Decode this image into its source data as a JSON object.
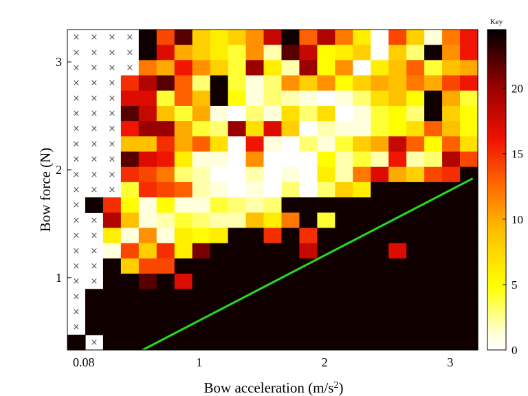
{
  "chart_data": {
    "type": "heatmap",
    "title": "",
    "xlabel": "Bow acceleration (m/s",
    "xlabel_sup": "2",
    "xlabel_close": ")",
    "ylabel": "Bow force (N)",
    "xlim": [
      -0.05,
      3.22
    ],
    "ylim": [
      0.33,
      3.3
    ],
    "x_ticks": [
      {
        "value": 0.08,
        "label": "0.08"
      },
      {
        "value": 1,
        "label": "1"
      },
      {
        "value": 2,
        "label": "2"
      },
      {
        "value": 3,
        "label": "3"
      }
    ],
    "y_ticks": [
      {
        "value": 1,
        "label": "1"
      },
      {
        "value": 2,
        "label": "2"
      },
      {
        "value": 3,
        "label": "3"
      }
    ],
    "colorbar": {
      "title": "Key",
      "min": 0,
      "max": 24.5,
      "ticks": [
        {
          "value": 0,
          "label": "0"
        },
        {
          "value": 5,
          "label": "5"
        },
        {
          "value": 10,
          "label": "10"
        },
        {
          "value": 15,
          "label": "15"
        },
        {
          "value": 20,
          "label": "20"
        }
      ]
    },
    "grid": false,
    "missing_marker": "×",
    "cells_note": "rows listed from top (high force) to bottom (low force); null = no data, marked with ×",
    "rows": [
      [
        null,
        null,
        null,
        null,
        24,
        14,
        22,
        8,
        6,
        8,
        11,
        18,
        24,
        13,
        19,
        12,
        6,
        0,
        14,
        8,
        1,
        12,
        16
      ],
      [
        null,
        null,
        null,
        null,
        24,
        17,
        10,
        8,
        6,
        4,
        11,
        2,
        22,
        18,
        5,
        6,
        8,
        0,
        8,
        3,
        24,
        11,
        16
      ],
      [
        null,
        null,
        null,
        null,
        12,
        10,
        16,
        11,
        8,
        4,
        20,
        6,
        2,
        20,
        5,
        11,
        0,
        6,
        9,
        13,
        4,
        9,
        10
      ],
      [
        null,
        null,
        null,
        15,
        19,
        22,
        13,
        3,
        24,
        4,
        1,
        3,
        11,
        8,
        11,
        5,
        8,
        10,
        9,
        12,
        10,
        14,
        16
      ],
      [
        null,
        null,
        null,
        17,
        17,
        4,
        13,
        9,
        24,
        5,
        1,
        3,
        2,
        1,
        0,
        1,
        3,
        7,
        9,
        5,
        24,
        10,
        4
      ],
      [
        null,
        null,
        null,
        22,
        18,
        9,
        4,
        10,
        1,
        0,
        3,
        1,
        7,
        3,
        7,
        0,
        1,
        4,
        5,
        3,
        24,
        8,
        5
      ],
      [
        null,
        null,
        null,
        16,
        20,
        20,
        10,
        4,
        3,
        20,
        7,
        17,
        8,
        0,
        2,
        1,
        1,
        4,
        5,
        7,
        13,
        9,
        5
      ],
      [
        null,
        null,
        null,
        9,
        9,
        15,
        10,
        13,
        7,
        0,
        16,
        1,
        0,
        3,
        1,
        4,
        8,
        10,
        18,
        13,
        5,
        13,
        7
      ],
      [
        null,
        null,
        null,
        22,
        17,
        16,
        6,
        1,
        1,
        0,
        11,
        0,
        0,
        0,
        5,
        2,
        4,
        2,
        16,
        2,
        3,
        19,
        14
      ],
      [
        null,
        null,
        null,
        15,
        14,
        12,
        3,
        2,
        0,
        0,
        2,
        0,
        1,
        0,
        6,
        2,
        12,
        17,
        10,
        8,
        14,
        15,
        24
      ],
      [
        null,
        null,
        null,
        4,
        15,
        14,
        13,
        2,
        1,
        0,
        1,
        0,
        3,
        0,
        3,
        8,
        6,
        24,
        24,
        24,
        24,
        24,
        24
      ],
      [
        null,
        24,
        15,
        5,
        1,
        5,
        1,
        1,
        4,
        3,
        2,
        3,
        24,
        24,
        24,
        24,
        24,
        24,
        24,
        24,
        24,
        24,
        24
      ],
      [
        null,
        null,
        19,
        9,
        1,
        2,
        4,
        3,
        2,
        2,
        9,
        6,
        12,
        24,
        4,
        24,
        24,
        24,
        24,
        24,
        24,
        24,
        24
      ],
      [
        null,
        null,
        6,
        1,
        11,
        1,
        6,
        5,
        6,
        24,
        24,
        15,
        24,
        15,
        24,
        24,
        24,
        24,
        24,
        24,
        24,
        24,
        24
      ],
      [
        null,
        null,
        1,
        14,
        8,
        15,
        6,
        21,
        24,
        24,
        24,
        24,
        24,
        18,
        24,
        24,
        24,
        24,
        17,
        24,
        24,
        24,
        24
      ],
      [
        null,
        null,
        24,
        8,
        14,
        14,
        24,
        24,
        24,
        24,
        24,
        24,
        24,
        24,
        24,
        24,
        24,
        24,
        24,
        24,
        24,
        24,
        24
      ],
      [
        null,
        null,
        24,
        24,
        22,
        24,
        17,
        24,
        24,
        24,
        24,
        24,
        24,
        24,
        24,
        24,
        24,
        24,
        24,
        24,
        24,
        24,
        24
      ],
      [
        null,
        24,
        24,
        24,
        24,
        24,
        24,
        24,
        24,
        24,
        24,
        24,
        24,
        24,
        24,
        24,
        24,
        24,
        24,
        24,
        24,
        24,
        24
      ],
      [
        null,
        24,
        24,
        24,
        24,
        24,
        24,
        24,
        24,
        24,
        24,
        24,
        24,
        24,
        24,
        24,
        24,
        24,
        24,
        24,
        24,
        24,
        24
      ],
      [
        null,
        24,
        24,
        24,
        24,
        24,
        24,
        24,
        24,
        24,
        24,
        24,
        24,
        24,
        24,
        24,
        24,
        24,
        24,
        24,
        24,
        24,
        24
      ],
      [
        24,
        null,
        24,
        24,
        24,
        24,
        24,
        24,
        24,
        24,
        24,
        24,
        24,
        24,
        24,
        24,
        24,
        24,
        24,
        24,
        24,
        24,
        24
      ]
    ],
    "line": {
      "color": "#22dd22",
      "points": [
        [
          0.55,
          0.33
        ],
        [
          3.18,
          1.92
        ]
      ]
    }
  }
}
